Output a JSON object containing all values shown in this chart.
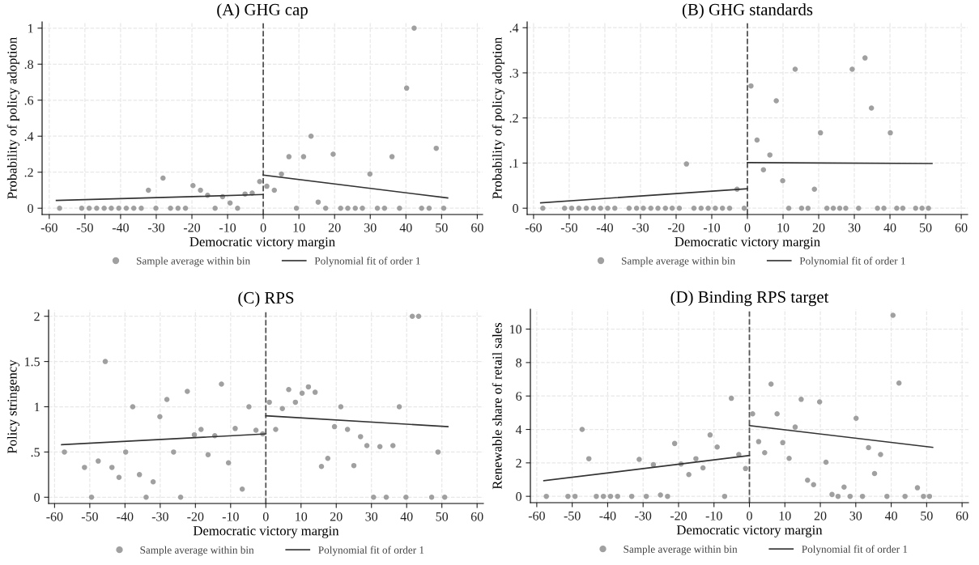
{
  "chart_data": [
    {
      "type": "scatter",
      "title": "(A) GHG cap",
      "xlabel": "Democratic victory margin",
      "ylabel": "Probability of policy adoption",
      "xlim": [
        -62,
        61.5
      ],
      "ylim": [
        -0.035,
        1.035
      ],
      "xticks": [
        -60,
        -50,
        -40,
        -30,
        -20,
        -10,
        0,
        10,
        20,
        30,
        40,
        50,
        60
      ],
      "yticks": [
        0,
        {
          "value": 0.2,
          "label": ".2"
        },
        {
          "value": 0.4,
          "label": ".4"
        },
        {
          "value": 0.6,
          "label": ".6"
        },
        {
          "value": 0.8,
          "label": ".8"
        },
        1
      ],
      "grid": true,
      "legend": "bottom",
      "marker": "circle",
      "ref_lines": [
        {
          "axis": "x",
          "value": 0,
          "color": "#555555",
          "line_style": "dashed"
        }
      ],
      "series": [
        {
          "name": "Sample average within bin",
          "color": "#a0a0a0",
          "x": [
            -57.1,
            -50.9,
            -48.8,
            -46.7,
            -44.6,
            -42.6,
            -40.5,
            -38.4,
            -36.3,
            -34.2,
            -32.2,
            -30.1,
            -28.1,
            -26.0,
            -23.9,
            -21.8,
            -19.7,
            -17.6,
            -15.6,
            -13.5,
            -11.4,
            -9.3,
            -7.2,
            -5.1,
            -3.1,
            -1.0,
            1.0,
            3.1,
            5.1,
            7.2,
            9.3,
            11.3,
            13.4,
            15.4,
            17.5,
            19.6,
            21.7,
            23.7,
            25.8,
            27.8,
            29.9,
            32.0,
            34.0,
            36.1,
            38.2,
            40.2,
            42.3,
            44.4,
            46.5,
            48.5,
            50.6
          ],
          "values": [
            0,
            0,
            0,
            0,
            0,
            0,
            0,
            0,
            0,
            0,
            0.1,
            0,
            0.167,
            0,
            0,
            0,
            0.126,
            0.1,
            0.072,
            0,
            0.064,
            0.029,
            0,
            0.079,
            0.084,
            0.148,
            0.122,
            0.1,
            0.19,
            0.286,
            0,
            0.286,
            0.4,
            0.034,
            0,
            0.3,
            0,
            0,
            0,
            0,
            0.19,
            0,
            0,
            0.286,
            0,
            0.667,
            1.0,
            0,
            0,
            0.333,
            0
          ]
        },
        {
          "type": "line",
          "name": "Polynomial fit of order 1",
          "color": "#333333",
          "marker": "none",
          "x": [
            -58,
            0
          ],
          "values": [
            0.043,
            0.076
          ]
        },
        {
          "type": "line",
          "color": "#333333",
          "marker": "none",
          "x": [
            0,
            51.7
          ],
          "values": [
            0.184,
            0.057
          ]
        }
      ]
    },
    {
      "type": "scatter",
      "title": "(B) GHG standards",
      "xlabel": "Democratic victory margin",
      "ylabel": "Probability of policy adoption",
      "xlim": [
        -61.8,
        61.8
      ],
      "ylim": [
        -0.014,
        0.413
      ],
      "xticks": [
        -60,
        -50,
        -40,
        -30,
        -20,
        -10,
        0,
        10,
        20,
        30,
        40,
        50,
        60
      ],
      "yticks": [
        0,
        {
          "value": 0.1,
          "label": ".1"
        },
        {
          "value": 0.2,
          "label": ".2"
        },
        {
          "value": 0.3,
          "label": ".3"
        },
        {
          "value": 0.4,
          "label": ".4"
        }
      ],
      "grid": true,
      "legend": "bottom",
      "marker": "circle",
      "ref_lines": [
        {
          "axis": "x",
          "value": 0,
          "color": "#555555",
          "line_style": "dashed"
        }
      ],
      "series": [
        {
          "name": "Sample average within bin",
          "color": "#a0a0a0",
          "x": [
            -57.4,
            -51.3,
            -49.3,
            -47.3,
            -45.2,
            -43.2,
            -41.2,
            -39.2,
            -37.2,
            -33.2,
            -31.1,
            -29.2,
            -27.1,
            -25.1,
            -23.0,
            -21.1,
            -19.1,
            -17.1,
            -15.0,
            -13.0,
            -11.0,
            -9.0,
            -7.0,
            -5.0,
            -2.9,
            -0.9,
            1.0,
            2.7,
            4.5,
            6.3,
            8.1,
            9.9,
            11.6,
            13.4,
            15.2,
            17.0,
            18.8,
            20.5,
            22.3,
            24.1,
            25.9,
            27.6,
            29.4,
            31.2,
            33.0,
            34.8,
            36.5,
            38.3,
            40.1,
            41.9,
            43.6,
            47.2,
            49.0,
            50.8
          ],
          "values": [
            0,
            0,
            0,
            0,
            0,
            0,
            0,
            0,
            0,
            0,
            0,
            0,
            0,
            0,
            0,
            0,
            0,
            0.098,
            0,
            0,
            0,
            0,
            0,
            0,
            0.042,
            0,
            0.271,
            0.151,
            0.085,
            0.118,
            0.238,
            0.061,
            0,
            0.308,
            0,
            0,
            0.042,
            0.167,
            0,
            0,
            0,
            0,
            0.308,
            0,
            0.333,
            0.222,
            0,
            0,
            0.167,
            0,
            0,
            0,
            0,
            0
          ]
        },
        {
          "type": "line",
          "name": "Polynomial fit of order 1",
          "color": "#333333",
          "marker": "none",
          "x": [
            -58,
            0
          ],
          "values": [
            0.012,
            0.043
          ]
        },
        {
          "type": "line",
          "color": "#333333",
          "marker": "none",
          "x": [
            0,
            51.8
          ],
          "values": [
            0.101,
            0.099
          ]
        }
      ]
    },
    {
      "type": "scatter",
      "title": "(C) RPS",
      "xlabel": "Democratic victory margin",
      "ylabel": "Policy stringency",
      "xlim": [
        -61.7,
        61.8
      ],
      "ylim": [
        -0.069,
        2.069
      ],
      "xticks": [
        -60,
        -50,
        -40,
        -30,
        -20,
        -10,
        0,
        10,
        20,
        30,
        40,
        50,
        60
      ],
      "yticks": [
        0,
        {
          "value": 0.5,
          "label": ".5"
        },
        1,
        1.5,
        2
      ],
      "grid": true,
      "legend": "bottom",
      "marker": "circle",
      "ref_lines": [
        {
          "axis": "x",
          "value": 0,
          "color": "#555555",
          "line_style": "dashed"
        }
      ],
      "series": [
        {
          "name": "Sample average within bin",
          "color": "#a0a0a0",
          "x": [
            -57.2,
            -51.5,
            -49.5,
            -47.6,
            -45.6,
            -43.7,
            -41.7,
            -39.8,
            -37.8,
            -35.9,
            -34.0,
            -32.0,
            -30.1,
            -28.1,
            -26.2,
            -24.2,
            -22.3,
            -20.3,
            -18.4,
            -16.4,
            -14.5,
            -12.6,
            -10.6,
            -8.7,
            -6.7,
            -4.8,
            -2.8,
            -0.9,
            1.0,
            2.8,
            4.7,
            6.5,
            8.4,
            10.3,
            12.1,
            14.0,
            15.8,
            17.6,
            19.5,
            21.3,
            23.2,
            25.0,
            26.9,
            28.7,
            30.6,
            32.4,
            34.2,
            36.1,
            37.9,
            39.8,
            41.6,
            43.4,
            47.1,
            48.9,
            50.8
          ],
          "values": [
            0.5,
            0.33,
            0,
            0.4,
            1.5,
            0.33,
            0.22,
            0.5,
            1.0,
            0.25,
            0,
            0.17,
            0.89,
            1.08,
            0.5,
            0,
            1.17,
            0.69,
            0.75,
            0.47,
            0.68,
            1.25,
            0.38,
            0.76,
            0.09,
            1.0,
            0.74,
            0.7,
            1.05,
            0.75,
            0.98,
            1.19,
            1.05,
            1.15,
            1.22,
            1.16,
            0.34,
            0.43,
            0.78,
            1.0,
            0.75,
            0.35,
            0.67,
            0.57,
            0,
            0.56,
            0,
            0.57,
            1.0,
            0,
            2.0,
            2.0,
            0,
            0.5,
            0
          ]
        },
        {
          "type": "line",
          "name": "Polynomial fit of order 1",
          "color": "#333333",
          "marker": "none",
          "x": [
            -58,
            0
          ],
          "values": [
            0.58,
            0.7
          ]
        },
        {
          "type": "line",
          "color": "#333333",
          "marker": "none",
          "x": [
            0,
            51.7
          ],
          "values": [
            0.9,
            0.78
          ]
        }
      ]
    },
    {
      "type": "scatter",
      "title": "(D) Binding RPS target",
      "xlabel": "Democratic victory margin",
      "ylabel": "Renewable share of retail sales",
      "xlim": [
        -61.8,
        61.8
      ],
      "ylim": [
        -0.38,
        11.19
      ],
      "xticks": [
        -60,
        -50,
        -40,
        -30,
        -20,
        -10,
        0,
        10,
        20,
        30,
        40,
        50,
        60
      ],
      "yticks": [
        0,
        2,
        4,
        6,
        8,
        10
      ],
      "grid": true,
      "legend": "bottom",
      "marker": "circle",
      "ref_lines": [
        {
          "axis": "x",
          "value": 0,
          "color": "#555555",
          "line_style": "dashed"
        }
      ],
      "series": [
        {
          "name": "Sample average within bin",
          "color": "#a0a0a0",
          "x": [
            -57.3,
            -51.2,
            -49.2,
            -47.2,
            -45.3,
            -43.2,
            -41.2,
            -39.2,
            -37.2,
            -33.2,
            -31.1,
            -29.1,
            -27.1,
            -25.1,
            -23.1,
            -21.1,
            -19.3,
            -17.1,
            -15.1,
            -13.1,
            -11.1,
            -9.1,
            -7.0,
            -5.1,
            -3.0,
            -1.1,
            0.9,
            2.6,
            4.3,
            6.1,
            7.8,
            9.4,
            11.2,
            12.9,
            14.6,
            16.4,
            18.1,
            19.8,
            21.6,
            23.3,
            25.0,
            26.7,
            28.4,
            30.1,
            31.9,
            33.6,
            35.3,
            37.0,
            38.8,
            40.5,
            42.2,
            43.9,
            47.4,
            49.1,
            50.8
          ],
          "values": [
            0,
            0,
            0,
            4.0,
            2.25,
            0,
            0,
            0,
            0,
            0,
            2.21,
            0,
            1.89,
            0.08,
            0,
            3.16,
            1.93,
            1.3,
            2.25,
            1.7,
            3.67,
            2.95,
            0,
            5.86,
            2.5,
            1.66,
            4.93,
            3.27,
            2.61,
            6.71,
            4.93,
            3.21,
            2.27,
            4.14,
            5.8,
            0.96,
            0.7,
            5.65,
            2.04,
            0.11,
            0,
            0.55,
            0,
            4.67,
            0,
            2.91,
            1.36,
            2.5,
            0,
            10.83,
            6.77,
            0,
            0.51,
            0,
            0
          ]
        },
        {
          "type": "line",
          "name": "Polynomial fit of order 1",
          "color": "#333333",
          "marker": "none",
          "x": [
            -58,
            0
          ],
          "values": [
            0.93,
            2.44
          ]
        },
        {
          "type": "line",
          "color": "#333333",
          "marker": "none",
          "x": [
            0,
            51.7
          ],
          "values": [
            4.23,
            2.93
          ]
        }
      ]
    }
  ]
}
